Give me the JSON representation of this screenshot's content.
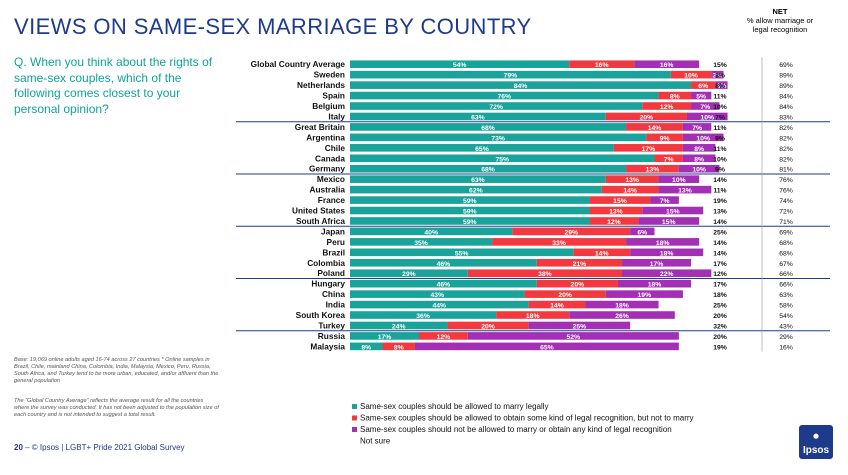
{
  "page": {
    "title": "VIEWS ON SAME-SEX MARRIAGE BY COUNTRY",
    "question": "Q. When you think about the rights of same-sex couples, which of the following comes closest to your personal opinion?",
    "base_note": "Base: 19,069 online adults aged 16-74 across 27 countries * Online samples in Brazil, Chile, mainland China, Colombia, India, Malaysia, Mexico, Peru, Russia, South Africa, and Turkey tend to be more urban, educated, and/or affluent than the general population",
    "gca_note": "The \"Global Country Average\" reflects the average result for all the countries where the survey was conducted. It has not been adjusted to the population size of each country and is not intended to suggest a total result.",
    "footer_page": "20",
    "footer_text": " – © Ipsos | LGBT+ Pride 2021 Global Survey",
    "net_bold": "NET",
    "net_label": "% allow marriage or legal recognition",
    "logo_text": "Ipsos"
  },
  "chart_data": {
    "type": "bar",
    "orientation": "horizontal",
    "stacked": true,
    "title": "VIEWS ON SAME-SEX MARRIAGE BY COUNTRY",
    "colors": {
      "legal": "#1aa39a",
      "other": "#f2393f",
      "none": "#a32fb5",
      "divider": "#1e3a8a"
    },
    "series": [
      {
        "name": "Same-sex couples should be allowed to marry legally",
        "key": "legal"
      },
      {
        "name": "Same-sex couples should be allowed to obtain some kind of legal recognition, but not to marry",
        "key": "other"
      },
      {
        "name": "Same-sex couples should not be allowed to marry or obtain any kind of legal recognition",
        "key": "none"
      },
      {
        "name": "Not sure",
        "key": "notsure"
      }
    ],
    "groups": [
      [
        {
          "country": "Global Country Average",
          "legal": 54,
          "other": 16,
          "none": 16,
          "notsure": 15,
          "net": 69
        },
        {
          "country": "Sweden",
          "legal": 79,
          "other": 10,
          "none": 3,
          "notsure": 8,
          "net": 89
        },
        {
          "country": "Netherlands",
          "legal": 84,
          "other": 6,
          "none": 3,
          "notsure": 8,
          "net": 89
        },
        {
          "country": "Spain",
          "legal": 76,
          "other": 8,
          "none": 5,
          "notsure": 11,
          "net": 84
        },
        {
          "country": "Belgium",
          "legal": 72,
          "other": 12,
          "none": 7,
          "notsure": 10,
          "net": 84
        },
        {
          "country": "Italy",
          "legal": 63,
          "other": 20,
          "none": 10,
          "notsure": 7,
          "net": 83
        }
      ],
      [
        {
          "country": "Great Britain",
          "legal": 68,
          "other": 14,
          "none": 7,
          "notsure": 11,
          "net": 82
        },
        {
          "country": "Argentina",
          "legal": 73,
          "other": 9,
          "none": 10,
          "notsure": 9,
          "net": 82
        },
        {
          "country": "Chile",
          "legal": 65,
          "other": 17,
          "none": 8,
          "notsure": 11,
          "net": 82
        },
        {
          "country": "Canada",
          "legal": 75,
          "other": 7,
          "none": 8,
          "notsure": 10,
          "net": 82
        },
        {
          "country": "Germany",
          "legal": 68,
          "other": 13,
          "none": 10,
          "notsure": 9,
          "net": 81
        }
      ],
      [
        {
          "country": "Mexico",
          "legal": 63,
          "other": 13,
          "none": 10,
          "notsure": 14,
          "net": 76
        },
        {
          "country": "Australia",
          "legal": 62,
          "other": 14,
          "none": 13,
          "notsure": 11,
          "net": 76
        },
        {
          "country": "France",
          "legal": 59,
          "other": 15,
          "none": 7,
          "notsure": 19,
          "net": 74
        },
        {
          "country": "United States",
          "legal": 59,
          "other": 13,
          "none": 15,
          "notsure": 13,
          "net": 72
        },
        {
          "country": "South Africa",
          "legal": 59,
          "other": 12,
          "none": 15,
          "notsure": 14,
          "net": 71
        }
      ],
      [
        {
          "country": "Japan",
          "legal": 40,
          "other": 29,
          "none": 6,
          "notsure": 25,
          "net": 69
        },
        {
          "country": "Peru",
          "legal": 35,
          "other": 33,
          "none": 18,
          "notsure": 14,
          "net": 68
        },
        {
          "country": "Brazil",
          "legal": 55,
          "other": 14,
          "none": 18,
          "notsure": 14,
          "net": 68
        },
        {
          "country": "Colombia",
          "legal": 46,
          "other": 21,
          "none": 17,
          "notsure": 17,
          "net": 67
        },
        {
          "country": "Poland",
          "legal": 29,
          "other": 38,
          "none": 22,
          "notsure": 12,
          "net": 66
        }
      ],
      [
        {
          "country": "Hungary",
          "legal": 46,
          "other": 20,
          "none": 18,
          "notsure": 17,
          "net": 66
        },
        {
          "country": "China",
          "legal": 43,
          "other": 20,
          "none": 19,
          "notsure": 18,
          "net": 63
        },
        {
          "country": "India",
          "legal": 44,
          "other": 14,
          "none": 18,
          "notsure": 25,
          "net": 58
        },
        {
          "country": "South Korea",
          "legal": 36,
          "other": 18,
          "none": 26,
          "notsure": 20,
          "net": 54
        },
        {
          "country": "Turkey",
          "legal": 24,
          "other": 20,
          "none": 25,
          "notsure": 32,
          "net": 43
        }
      ],
      [
        {
          "country": "Russia",
          "legal": 17,
          "other": 12,
          "none": 52,
          "notsure": 20,
          "net": 29
        },
        {
          "country": "Malaysia",
          "legal": 8,
          "other": 8,
          "none": 65,
          "notsure": 19,
          "net": 16
        }
      ]
    ]
  }
}
